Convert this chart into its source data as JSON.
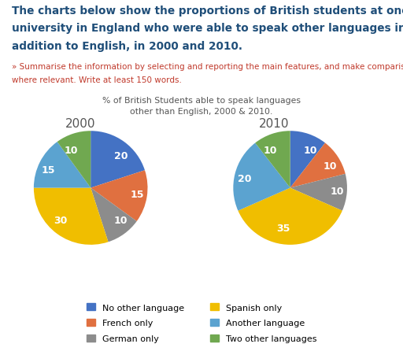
{
  "title_line1": "The charts below show the proportions of British students at one",
  "title_line2": "university in England who were able to speak other languages in",
  "title_line3": "addition to English, in 2000 and 2010.",
  "subtitle_line1": "» Summarise the information by selecting and reporting the main features, and make comparison",
  "subtitle_line2": "where relevant. Write at least 150 words.",
  "chart_title_line1": "% of British Students able to speak languages",
  "chart_title_line2": "other than English, 2000 & 2010.",
  "year_2000_label": "2000",
  "year_2010_label": "2010",
  "categories": [
    "No other language",
    "French only",
    "German only",
    "Spanish only",
    "Another language",
    "Two other languages"
  ],
  "colors": [
    "#4472C4",
    "#E07040",
    "#8C8C8C",
    "#F0BE00",
    "#5BA3D0",
    "#70A850"
  ],
  "values_2000": [
    20,
    15,
    10,
    30,
    15,
    10
  ],
  "values_2010": [
    10,
    10,
    10,
    35,
    20,
    10
  ],
  "labels_2000": [
    "20",
    "15",
    "10",
    "30",
    "15",
    "10"
  ],
  "labels_2010": [
    "10",
    "10",
    "10",
    "35",
    "20",
    "10"
  ],
  "startangle_2000": 90,
  "startangle_2010": 90,
  "background_color": "#ffffff",
  "title_color": "#1F4E79",
  "subtitle_color": "#C0392B",
  "chart_title_color": "#555555",
  "title_fontsize": 9.8,
  "subtitle_fontsize": 7.5,
  "chart_title_fontsize": 7.8,
  "year_label_fontsize": 11,
  "legend_fontsize": 8,
  "label_fontsize": 9
}
